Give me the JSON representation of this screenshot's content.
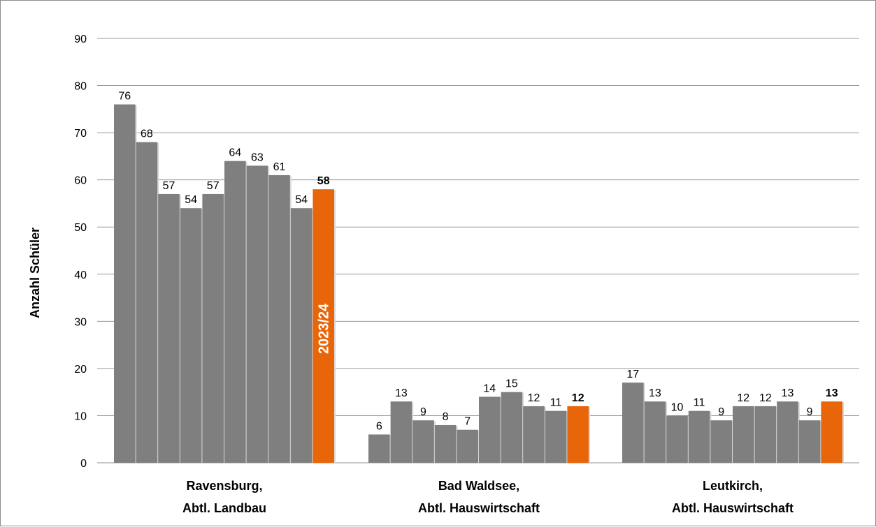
{
  "chart_data": {
    "type": "bar",
    "ylabel": "Anzahl Schüler",
    "ylim": [
      0,
      90
    ],
    "yticks": [
      0,
      10,
      20,
      30,
      40,
      50,
      60,
      70,
      80,
      90
    ],
    "grid": true,
    "colors": {
      "past": "#7f7f7f",
      "current": "#e8650a"
    },
    "highlight_label": "2023/24",
    "groups": [
      {
        "label_line1": "Ravensburg,",
        "label_line2": "Abtl. Landbau",
        "values": [
          76,
          68,
          57,
          54,
          57,
          64,
          63,
          61,
          54,
          58
        ]
      },
      {
        "label_line1": "Bad Waldsee,",
        "label_line2": "Abtl. Hauswirtschaft",
        "values": [
          6,
          13,
          9,
          8,
          7,
          14,
          15,
          12,
          11,
          12
        ]
      },
      {
        "label_line1": "Leutkirch,",
        "label_line2": "Abtl. Hauswirtschaft",
        "values": [
          17,
          13,
          10,
          11,
          9,
          12,
          12,
          13,
          9,
          13
        ]
      }
    ]
  }
}
